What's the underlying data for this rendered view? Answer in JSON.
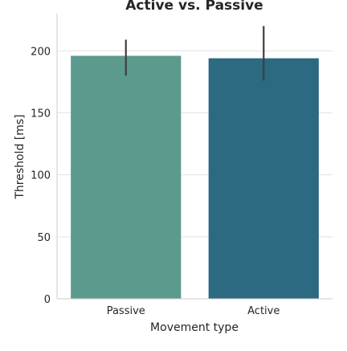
{
  "chart_data": {
    "type": "bar",
    "title": "Active vs. Passive",
    "xlabel": "Movement type",
    "ylabel": "Threshold [ms]",
    "categories": [
      "Passive",
      "Active"
    ],
    "values": [
      196,
      194
    ],
    "error_low": [
      180,
      176
    ],
    "error_high": [
      209,
      220
    ],
    "colors": [
      "#5c9a8e",
      "#2b6a80"
    ],
    "ylim": [
      0,
      230
    ],
    "yticks": [
      0,
      50,
      100,
      150,
      200
    ],
    "grid": true,
    "legend": "none"
  }
}
